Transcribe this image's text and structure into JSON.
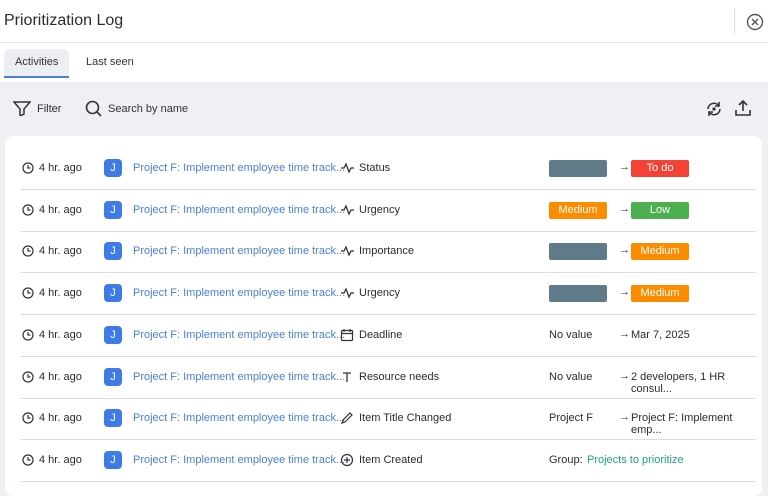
{
  "header": {
    "title": "Prioritization Log"
  },
  "tabs": [
    {
      "label": "Activities",
      "active": true
    },
    {
      "label": "Last seen",
      "active": false
    }
  ],
  "toolbar": {
    "filter": "Filter",
    "search_placeholder": "Search by name"
  },
  "rows": [
    {
      "time": "4 hr. ago",
      "avatar": "J",
      "item": "Project F: Implement employee time track...",
      "field": "Status",
      "icon": "pulse",
      "from": {
        "kind": "badge",
        "color": "#5f7b8a"
      },
      "to": {
        "kind": "badge",
        "text": "To do",
        "color": "#f44336"
      },
      "arrow": true
    },
    {
      "time": "4 hr. ago",
      "avatar": "J",
      "item": "Project F: Implement employee time track...",
      "field": "Urgency",
      "icon": "pulse",
      "from": {
        "kind": "badge",
        "text": "Medium",
        "color": "#fb8c00"
      },
      "to": {
        "kind": "badge",
        "text": "Low",
        "color": "#4caf50"
      },
      "arrow": true
    },
    {
      "time": "4 hr. ago",
      "avatar": "J",
      "item": "Project F: Implement employee time track...",
      "field": "Importance",
      "icon": "pulse",
      "from": {
        "kind": "badge",
        "color": "#5f7b8a"
      },
      "to": {
        "kind": "badge",
        "text": "Medium",
        "color": "#fb8c00"
      },
      "arrow": true
    },
    {
      "time": "4 hr. ago",
      "avatar": "J",
      "item": "Project F: Implement employee time track...",
      "field": "Urgency",
      "icon": "pulse",
      "from": {
        "kind": "badge",
        "color": "#5f7b8a"
      },
      "to": {
        "kind": "badge",
        "text": "Medium",
        "color": "#fb8c00"
      },
      "arrow": true
    },
    {
      "time": "4 hr. ago",
      "avatar": "J",
      "item": "Project F: Implement employee time track...",
      "field": "Deadline",
      "icon": "calendar",
      "from": {
        "kind": "text",
        "text": "No value"
      },
      "to": {
        "kind": "text",
        "text": "Mar 7, 2025"
      },
      "arrow": true
    },
    {
      "time": "4 hr. ago",
      "avatar": "J",
      "item": "Project F: Implement employee time track...",
      "field": "Resource needs",
      "icon": "text",
      "from": {
        "kind": "text",
        "text": "No value"
      },
      "to": {
        "kind": "text",
        "text": "2 developers, 1 HR consul..."
      },
      "arrow": true
    },
    {
      "time": "4 hr. ago",
      "avatar": "J",
      "item": "Project F: Implement employee time track...",
      "field": "Item Title Changed",
      "icon": "pencil",
      "from": {
        "kind": "text",
        "text": "Project F"
      },
      "to": {
        "kind": "text",
        "text": "Project F: Implement emp..."
      },
      "arrow": true
    },
    {
      "time": "4 hr. ago",
      "avatar": "J",
      "item": "Project F: Implement employee time track...",
      "field": "Item Created",
      "icon": "plus",
      "from": {
        "kind": "text",
        "text": "Group:"
      },
      "to": {
        "kind": "link",
        "text": "Projects to prioritize",
        "color": "#1e9e8c"
      },
      "arrow": false
    }
  ]
}
